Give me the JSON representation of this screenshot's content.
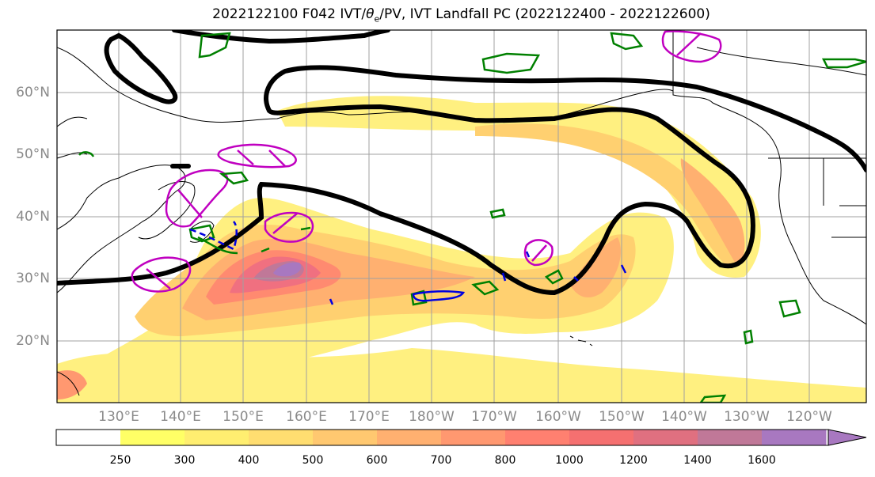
{
  "title_main": "2022122100 F042 IVT/",
  "title_theta": "θ",
  "title_sub": "e",
  "title_rest": "/PV, IVT Landfall PC (2022122400 - 2022122600)",
  "lat_labels": [
    "60°N",
    "50°N",
    "40°N",
    "30°N",
    "20°N"
  ],
  "lon_labels": [
    "130°E",
    "140°E",
    "150°E",
    "160°E",
    "170°E",
    "180°W",
    "170°W",
    "160°W",
    "150°W",
    "140°W",
    "130°W",
    "120°W"
  ],
  "colorbar": {
    "ticks": [
      "250",
      "300",
      "400",
      "500",
      "600",
      "700",
      "800",
      "1000",
      "1200",
      "1400",
      "1600"
    ],
    "colors": [
      "#ffff66",
      "#ffee70",
      "#ffdd70",
      "#ffc870",
      "#ffb070",
      "#ff9870",
      "#ff8070",
      "#f57070",
      "#e07080",
      "#c07898",
      "#a878c0"
    ]
  }
}
